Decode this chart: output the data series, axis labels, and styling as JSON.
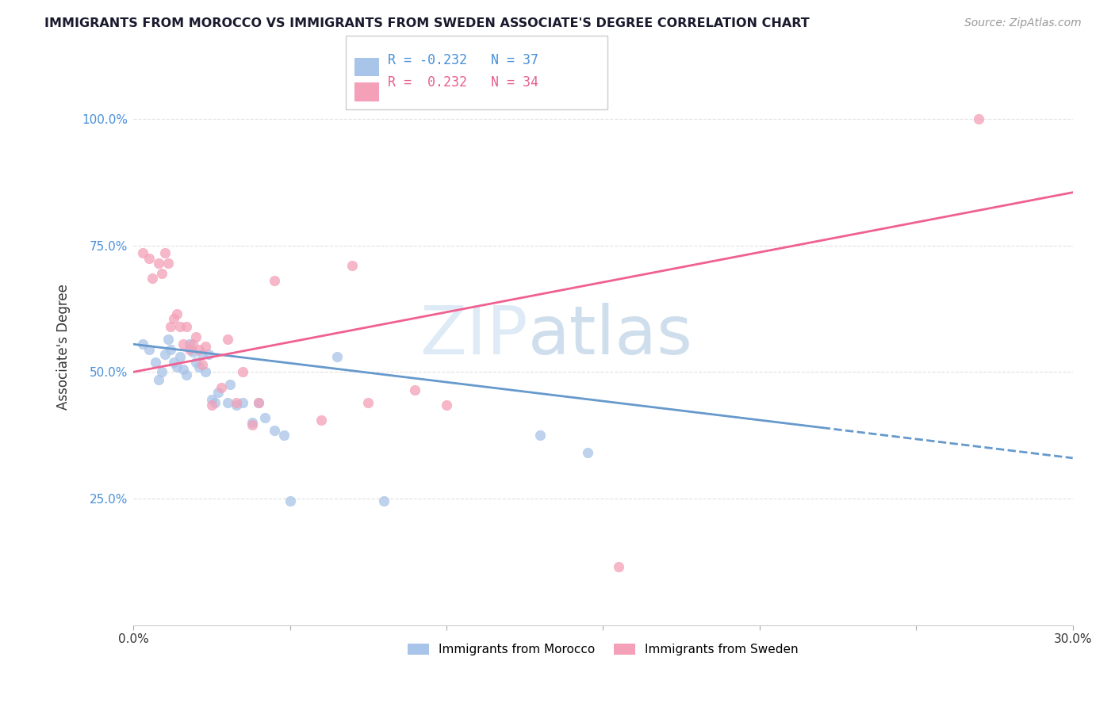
{
  "title": "IMMIGRANTS FROM MOROCCO VS IMMIGRANTS FROM SWEDEN ASSOCIATE'S DEGREE CORRELATION CHART",
  "source_text": "Source: ZipAtlas.com",
  "ylabel": "Associate's Degree",
  "x_min": 0.0,
  "x_max": 0.3,
  "y_min": 0.0,
  "y_max": 1.1,
  "y_ticks": [
    0.25,
    0.5,
    0.75,
    1.0
  ],
  "y_tick_labels": [
    "25.0%",
    "50.0%",
    "75.0%",
    "100.0%"
  ],
  "morocco_color": "#a8c4e8",
  "sweden_color": "#f4a0b8",
  "morocco_line_color": "#6699cc",
  "sweden_line_color": "#f06090",
  "R_morocco": -0.232,
  "N_morocco": 37,
  "R_sweden": 0.232,
  "N_sweden": 34,
  "watermark_zip": "ZIP",
  "watermark_atlas": "atlas",
  "background_color": "#ffffff",
  "grid_color": "#e0e0e0",
  "morocco_x": [
    0.003,
    0.005,
    0.007,
    0.008,
    0.009,
    0.01,
    0.011,
    0.012,
    0.013,
    0.014,
    0.015,
    0.016,
    0.017,
    0.018,
    0.019,
    0.02,
    0.021,
    0.022,
    0.023,
    0.024,
    0.025,
    0.026,
    0.027,
    0.03,
    0.031,
    0.033,
    0.035,
    0.038,
    0.04,
    0.042,
    0.045,
    0.048,
    0.05,
    0.065,
    0.08,
    0.13,
    0.145
  ],
  "morocco_y": [
    0.555,
    0.545,
    0.52,
    0.485,
    0.5,
    0.535,
    0.565,
    0.545,
    0.52,
    0.51,
    0.53,
    0.505,
    0.495,
    0.555,
    0.54,
    0.52,
    0.51,
    0.535,
    0.5,
    0.535,
    0.445,
    0.44,
    0.46,
    0.44,
    0.475,
    0.435,
    0.44,
    0.4,
    0.44,
    0.41,
    0.385,
    0.375,
    0.245,
    0.53,
    0.245,
    0.375,
    0.34
  ],
  "sweden_x": [
    0.003,
    0.005,
    0.006,
    0.008,
    0.009,
    0.01,
    0.011,
    0.012,
    0.013,
    0.014,
    0.015,
    0.016,
    0.017,
    0.018,
    0.019,
    0.02,
    0.021,
    0.022,
    0.023,
    0.025,
    0.028,
    0.03,
    0.033,
    0.035,
    0.038,
    0.04,
    0.045,
    0.06,
    0.07,
    0.075,
    0.09,
    0.1,
    0.155,
    0.27
  ],
  "sweden_y": [
    0.735,
    0.725,
    0.685,
    0.715,
    0.695,
    0.735,
    0.715,
    0.59,
    0.605,
    0.615,
    0.59,
    0.555,
    0.59,
    0.545,
    0.555,
    0.57,
    0.545,
    0.515,
    0.55,
    0.435,
    0.47,
    0.565,
    0.44,
    0.5,
    0.395,
    0.44,
    0.68,
    0.405,
    0.71,
    0.44,
    0.465,
    0.435,
    0.115,
    1.0
  ],
  "morocco_line_x0": 0.0,
  "morocco_line_x1": 0.3,
  "morocco_line_y0": 0.555,
  "morocco_line_y1": 0.33,
  "sweden_line_x0": 0.0,
  "sweden_line_x1": 0.3,
  "sweden_line_y0": 0.5,
  "sweden_line_y1": 0.855,
  "legend_R_morocco_text": "R = -0.232",
  "legend_N_morocco_text": "N = 37",
  "legend_R_sweden_text": "R =  0.232",
  "legend_N_sweden_text": "N = 34",
  "legend_label_morocco": "Immigrants from Morocco",
  "legend_label_sweden": "Immigrants from Sweden"
}
